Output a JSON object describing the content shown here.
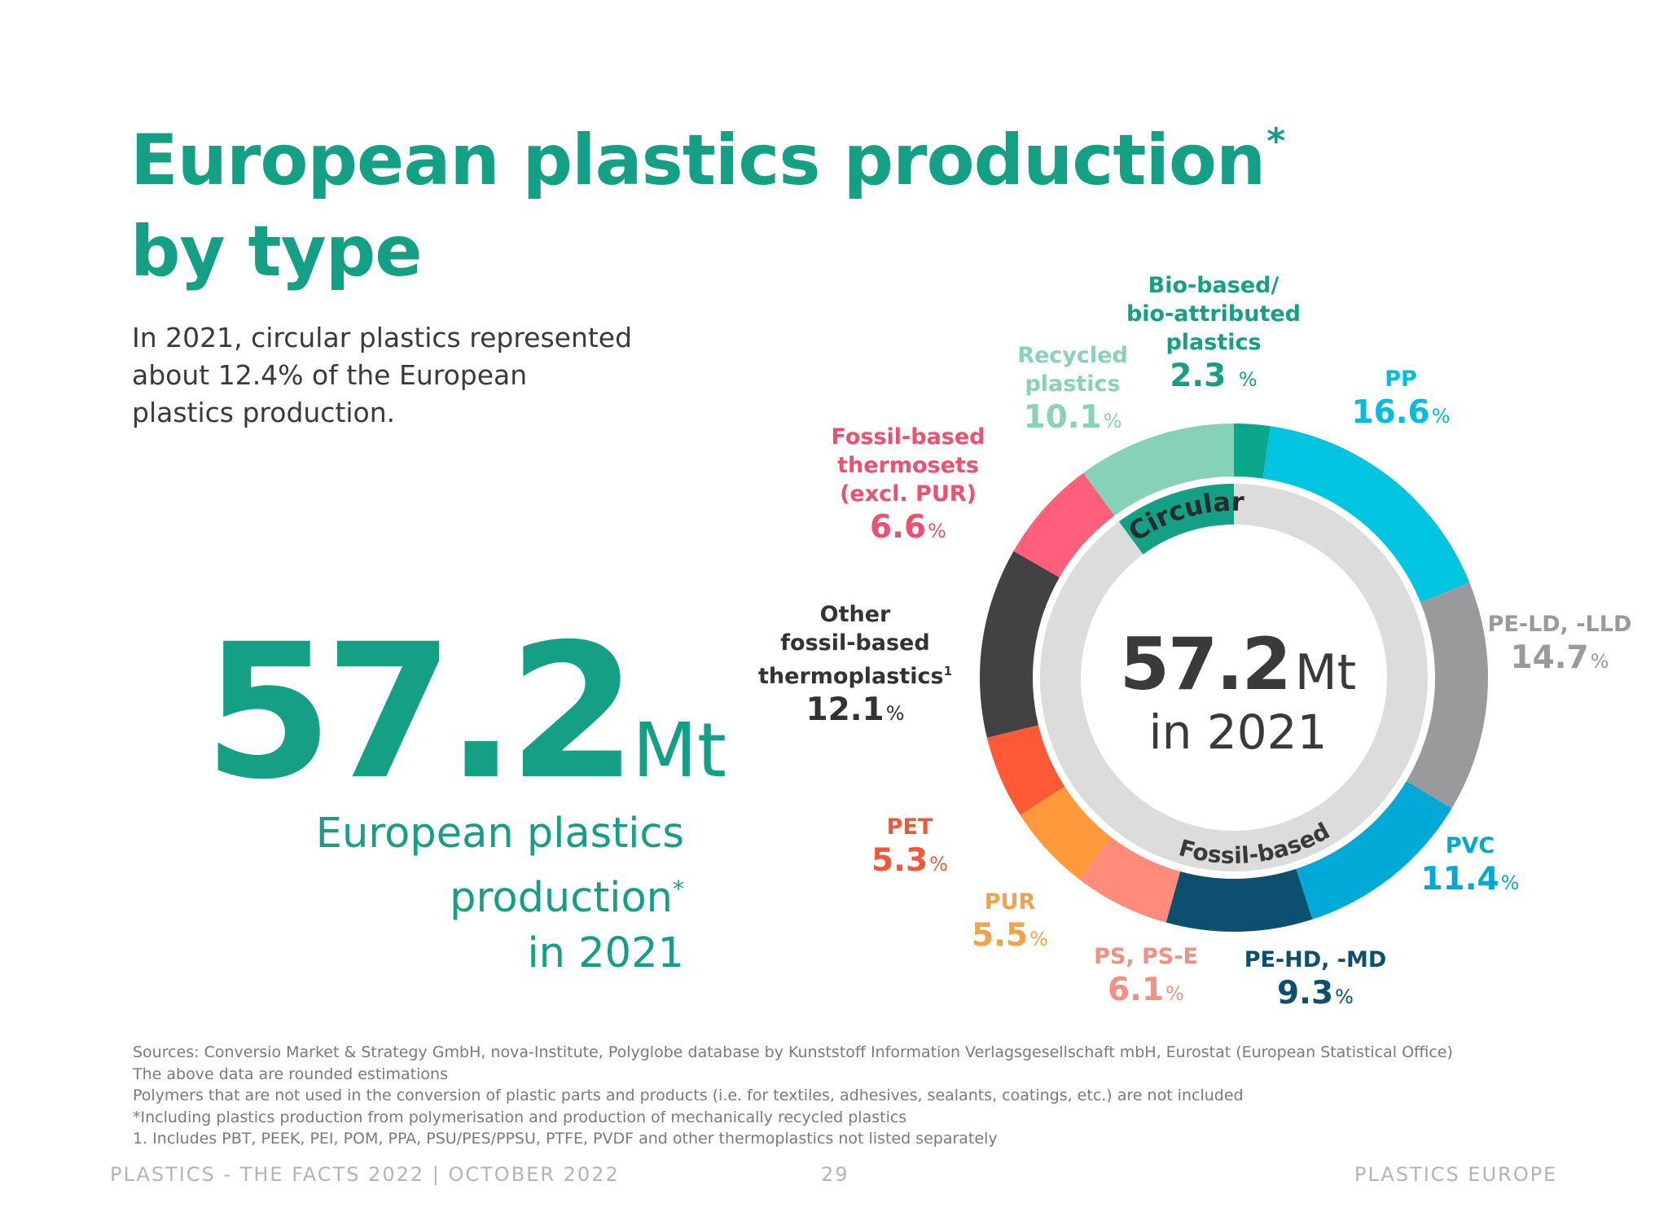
{
  "title": {
    "line1": "European plastics production",
    "mark": "*",
    "line2": "by type"
  },
  "intro": "In 2021, circular plastics represented about 12.4% of the European plastics production.",
  "headline": {
    "value": "57.2",
    "unit": "Mt",
    "caption_line1": "European plastics",
    "caption_line2": "production",
    "caption_mark": "*",
    "caption_line3": "in 2021"
  },
  "chart_data": {
    "type": "donut",
    "title": "",
    "unit": "%",
    "total": {
      "value": "57.2",
      "unit": "Mt",
      "label": "in 2021"
    },
    "groups": [
      {
        "name": "Circular",
        "color": "#14a085",
        "members": [
          "Bio-based/ bio-attributed plastics",
          "Recycled plastics"
        ]
      },
      {
        "name": "Fossil-based",
        "color": "#3a3a3a",
        "members": [
          "PP",
          "PE-LD, -LLD",
          "PVC",
          "PE-HD, -MD",
          "PS, PS-E",
          "PUR",
          "PET",
          "Other fossil-based thermoplastics",
          "Fossil-based thermosets (excl. PUR)"
        ]
      }
    ],
    "slices": [
      {
        "name": "Bio-based/ bio-attributed plastics",
        "value": 2.3,
        "label": "2.3",
        "color": "#0aa88a",
        "label_color": "#14a085"
      },
      {
        "name": "PP",
        "value": 16.6,
        "label": "16.6",
        "color": "#00c4e0",
        "label_color": "#00bde0"
      },
      {
        "name": "PE-LD, -LLD",
        "value": 14.7,
        "label": "14.7",
        "color": "#9a9a9c",
        "label_color": "#9a9a9c"
      },
      {
        "name": "PVC",
        "value": 11.4,
        "label": "11.4",
        "color": "#00a9d6",
        "label_color": "#00a9d6"
      },
      {
        "name": "PE-HD, -MD",
        "value": 9.3,
        "label": "9.3",
        "color": "#0d4f6e",
        "label_color": "#0d4f6e"
      },
      {
        "name": "PS, PS-E",
        "value": 6.1,
        "label": "6.1",
        "color": "#ff8c7a",
        "label_color": "#f39082"
      },
      {
        "name": "PUR",
        "value": 5.5,
        "label": "5.5",
        "color": "#ff9a3c",
        "label_color": "#f5a04a"
      },
      {
        "name": "PET",
        "value": 5.3,
        "label": "5.3",
        "color": "#ff5a36",
        "label_color": "#f0583a"
      },
      {
        "name": "Other fossil-based thermoplastics",
        "value": 12.1,
        "label": "12.1",
        "color": "#424245",
        "label_color": "#333333"
      },
      {
        "name": "Fossil-based thermosets (excl. PUR)",
        "value": 6.6,
        "label": "6.6",
        "color": "#ff5f78",
        "label_color": "#f0506e"
      },
      {
        "name": "Recycled plastics",
        "value": 10.1,
        "label": "10.1",
        "color": "#86d2b8",
        "label_color": "#8ad1b9"
      }
    ]
  },
  "labels": {
    "bio": {
      "lines": [
        "Bio-based/",
        "bio-attributed",
        "plastics"
      ]
    },
    "recycled": {
      "lines": [
        "Recycled",
        "plastics"
      ]
    },
    "pp": {
      "lines": [
        "PP"
      ]
    },
    "pe_ld": {
      "lines": [
        "PE-LD, -LLD"
      ]
    },
    "pvc": {
      "lines": [
        "PVC"
      ]
    },
    "pe_hd": {
      "lines": [
        "PE-HD, -MD"
      ]
    },
    "ps": {
      "lines": [
        "PS, PS-E"
      ]
    },
    "pur": {
      "lines": [
        "PUR"
      ]
    },
    "pet": {
      "lines": [
        "PET"
      ]
    },
    "other": {
      "lines": [
        "Other",
        "fossil-based",
        "thermoplastics"
      ],
      "mark": "1"
    },
    "thermosets": {
      "lines": [
        "Fossil-based",
        "thermosets",
        "(excl. PUR)"
      ]
    },
    "pct": "%"
  },
  "sources": [
    "Sources: Conversio Market & Strategy GmbH, nova-Institute, Polyglobe database by Kunststoff Information Verlagsgesellschaft mbH, Eurostat (European Statistical Office)",
    "The above data are rounded estimations",
    "Polymers that are not used in the conversion of plastic parts and products (i.e. for textiles, adhesives, sealants, coatings, etc.) are not included",
    "*Including plastics production from polymerisation and production of mechanically recycled plastics",
    "1. Includes PBT, PEEK, PEI, POM, PPA, PSU/PES/PPSU, PTFE, PVDF and other thermoplastics not listed separately"
  ],
  "footer": {
    "left": "PLASTICS - THE FACTS 2022 | OCTOBER 2022",
    "page": "29",
    "right": "PLASTICS EUROPE"
  }
}
